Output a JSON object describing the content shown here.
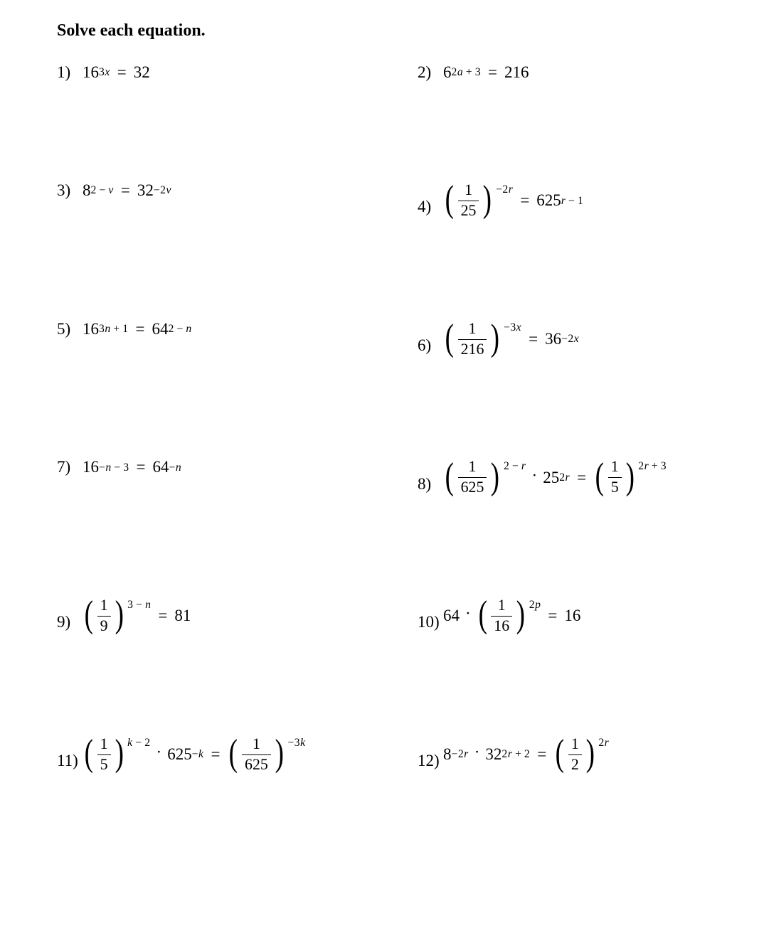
{
  "page": {
    "background_color": "#ffffff",
    "text_color": "#000000",
    "heading_fontsize": 24,
    "body_fontsize": 23,
    "font_family": "Times New Roman"
  },
  "heading": "Solve each equation.",
  "problems": [
    {
      "number": "1)",
      "type": "pow_eq_int",
      "left": {
        "base": "16",
        "exp": "3x"
      },
      "right_int": "32"
    },
    {
      "number": "2)",
      "type": "pow_eq_int",
      "left": {
        "base": "6",
        "exp": "2a + 3"
      },
      "right_int": "216"
    },
    {
      "number": "3)",
      "type": "pow_eq_pow",
      "left": {
        "base": "8",
        "exp": "2 − v"
      },
      "right": {
        "base": "32",
        "exp": "−2v"
      }
    },
    {
      "number": "4)",
      "type": "pfrac_eq_pow",
      "left_pfrac": {
        "num": "1",
        "den": "25",
        "exp": "−2r"
      },
      "right": {
        "base": "625",
        "exp": "r − 1"
      }
    },
    {
      "number": "5)",
      "type": "pow_eq_pow",
      "left": {
        "base": "16",
        "exp": "3n + 1"
      },
      "right": {
        "base": "64",
        "exp": "2 − n"
      }
    },
    {
      "number": "6)",
      "type": "pfrac_eq_pow",
      "left_pfrac": {
        "num": "1",
        "den": "216",
        "exp": "−3x"
      },
      "right": {
        "base": "36",
        "exp": "−2x"
      }
    },
    {
      "number": "7)",
      "type": "pow_eq_pow",
      "left": {
        "base": "16",
        "exp": "−n − 3"
      },
      "right": {
        "base": "64",
        "exp": "−n"
      }
    },
    {
      "number": "8)",
      "type": "pfrac_dot_pow_eq_pfrac",
      "left_pfrac": {
        "num": "1",
        "den": "625",
        "exp": "2 − r"
      },
      "mid": {
        "base": "25",
        "exp": "2r"
      },
      "right_pfrac": {
        "num": "1",
        "den": "5",
        "exp": "2r + 3"
      }
    },
    {
      "number": "9)",
      "type": "pfrac_eq_int",
      "left_pfrac": {
        "num": "1",
        "den": "9",
        "exp": "3 − n"
      },
      "right_int": "81"
    },
    {
      "number": "10)",
      "type": "int_dot_pfrac_eq_int",
      "left_int": "64",
      "pfrac": {
        "num": "1",
        "den": "16",
        "exp": "2p"
      },
      "right_int": "16"
    },
    {
      "number": "11)",
      "type": "pfrac_dot_pow_eq_pfrac",
      "left_pfrac": {
        "num": "1",
        "den": "5",
        "exp": "k − 2"
      },
      "mid": {
        "base": "625",
        "exp": "−k"
      },
      "right_pfrac": {
        "num": "1",
        "den": "625",
        "exp": "−3k"
      }
    },
    {
      "number": "12)",
      "type": "pow_dot_pow_eq_pfrac",
      "left": {
        "base": "8",
        "exp": "−2r"
      },
      "mid": {
        "base": "32",
        "exp": "2r + 2"
      },
      "right_pfrac": {
        "num": "1",
        "den": "2",
        "exp": "2r"
      }
    }
  ]
}
